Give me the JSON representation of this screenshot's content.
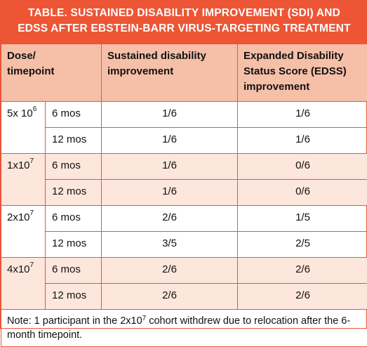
{
  "title": {
    "line1": "TABLE. SUSTAINED DISABILITY IMPROVEMENT (SDI) AND",
    "line2": "EDSS AFTER EBSTEIN-BARR VIRUS-TARGETING TREATMENT"
  },
  "headers": {
    "dose_line1": "Dose/",
    "dose_line2": "timepoint",
    "sdi_line1": "Sustained disability",
    "sdi_line2": "improvement",
    "edss_line1": "Expanded Disability",
    "edss_line2": "Status Score (EDSS)",
    "edss_line3": "improvement"
  },
  "groups": [
    {
      "dose_base": "5x 10",
      "dose_exp": "6",
      "rows": [
        {
          "time": "6 mos",
          "sdi": "1/6",
          "edss": "1/6"
        },
        {
          "time": "12 mos",
          "sdi": "1/6",
          "edss": "1/6"
        }
      ]
    },
    {
      "dose_base": "1x10",
      "dose_exp": "7",
      "rows": [
        {
          "time": "6 mos",
          "sdi": "1/6",
          "edss": "0/6"
        },
        {
          "time": "12 mos",
          "sdi": "1/6",
          "edss": "0/6"
        }
      ]
    },
    {
      "dose_base": "2x10",
      "dose_exp": "7",
      "rows": [
        {
          "time": "6 mos",
          "sdi": "2/6",
          "edss": "1/5"
        },
        {
          "time": "12 mos",
          "sdi": "3/5",
          "edss": "2/5"
        }
      ]
    },
    {
      "dose_base": "4x10",
      "dose_exp": "7",
      "rows": [
        {
          "time": "6 mos",
          "sdi": "2/6",
          "edss": "2/6"
        },
        {
          "time": "12 mos",
          "sdi": "2/6",
          "edss": "2/6"
        }
      ]
    }
  ],
  "note": {
    "prefix": "Note: 1 participant in the 2x10",
    "exp": "7",
    "suffix": " cohort withdrew due to relocation after the 6-month timepoint."
  },
  "colors": {
    "title_bg": "#ed5535",
    "header_bg": "#f6bfa8",
    "shaded_row_bg": "#fde6dc",
    "border": "#e8553a"
  }
}
